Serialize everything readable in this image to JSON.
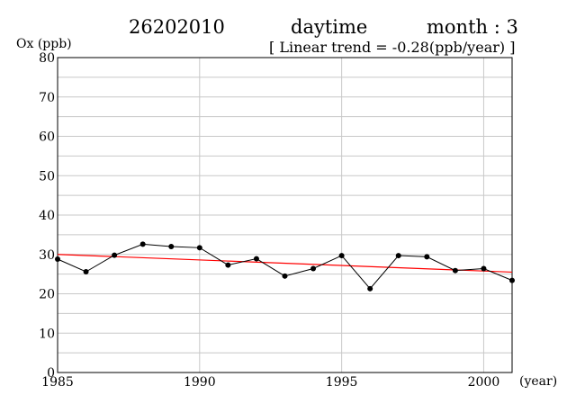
{
  "header": {
    "station": "26202010",
    "period": "daytime",
    "month": "month : 3",
    "trend": "[ Linear trend = -0.28(ppb/year) ]"
  },
  "chart_data": {
    "type": "line",
    "ylabel": "Ox (ppb)",
    "xlabel": "(year)",
    "xlim": [
      1985,
      2001
    ],
    "ylim": [
      0,
      80
    ],
    "x_ticks": [
      1985,
      1990,
      1995,
      2000
    ],
    "y_ticks": [
      0,
      10,
      20,
      30,
      40,
      50,
      60,
      70,
      80
    ],
    "grid": true,
    "series": [
      {
        "x": [
          1985,
          1986,
          1987,
          1988,
          1989,
          1990,
          1991,
          1992,
          1993,
          1994,
          1995,
          1996,
          1997,
          1998,
          1999,
          2000,
          2001
        ],
        "values": [
          28.8,
          25.6,
          29.8,
          32.6,
          32.0,
          31.7,
          27.3,
          28.9,
          24.5,
          26.4,
          29.7,
          21.3,
          29.7,
          29.4,
          25.9,
          26.4,
          23.4
        ],
        "color": "#000000"
      }
    ],
    "trend_line": {
      "x": [
        1985,
        2001
      ],
      "y": [
        30.0,
        25.5
      ],
      "color": "#ff0000"
    }
  }
}
